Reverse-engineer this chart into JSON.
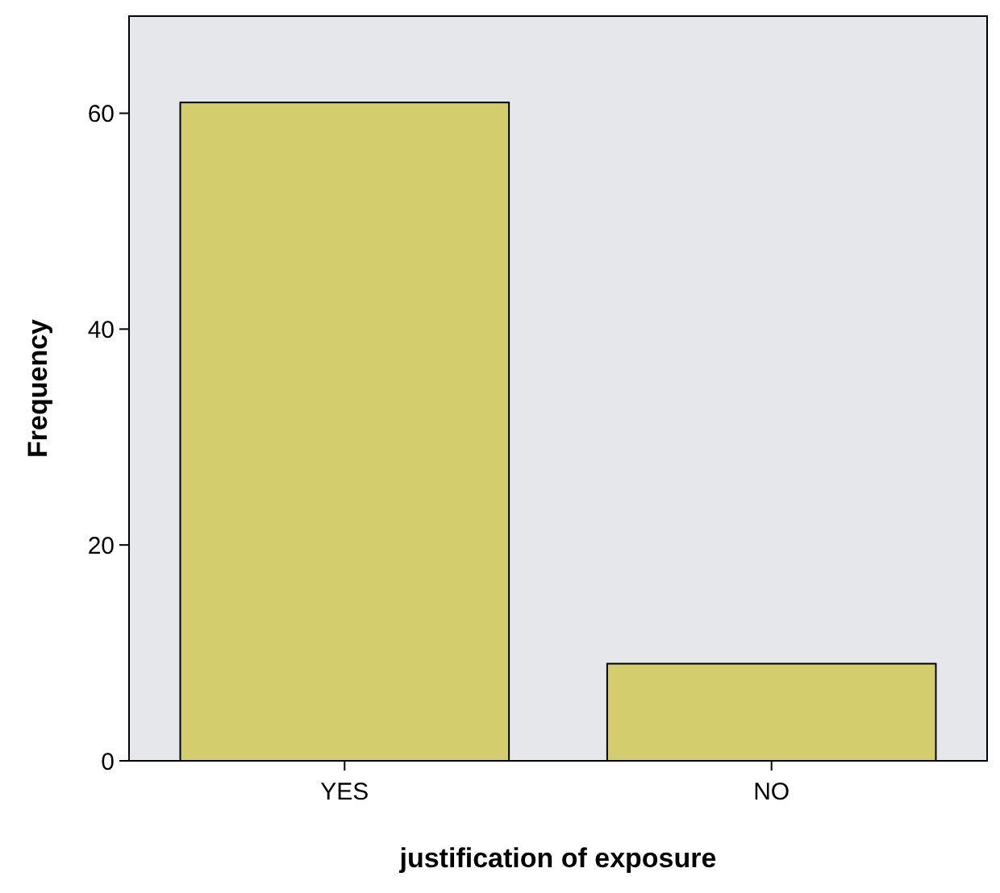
{
  "chart_data": {
    "type": "bar",
    "xlabel": "justification of exposure",
    "ylabel": "Frequency",
    "categories": [
      "YES",
      "NO"
    ],
    "values": [
      61,
      9
    ],
    "color": "#d4cd6e",
    "ylim": [
      0,
      69
    ],
    "yticks": [
      0,
      20,
      40,
      60
    ],
    "grid": false
  }
}
